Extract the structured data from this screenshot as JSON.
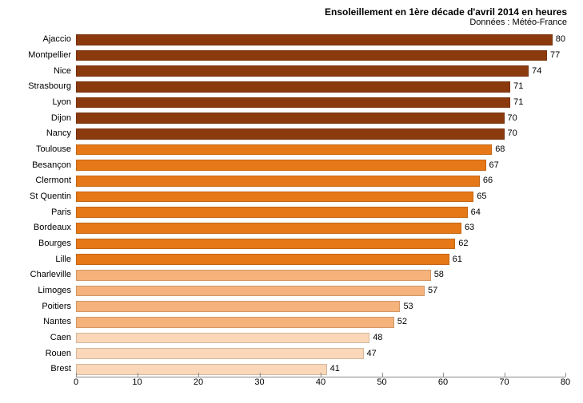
{
  "chart": {
    "type": "bar-horizontal",
    "title": "Ensoleillement en 1ère décade d'avril 2014 en heures",
    "subtitle": "Données : Météo-France",
    "title_fontsize": 12,
    "subtitle_fontsize": 11,
    "background_color": "#ffffff",
    "xlim": [
      0,
      80
    ],
    "xtick_step": 10,
    "xticks": [
      0,
      10,
      20,
      30,
      40,
      50,
      60,
      70,
      80
    ],
    "bar_border_color": "rgba(0,0,0,0.15)",
    "colors": {
      "dark": "#8b3a0e",
      "mid": "#e67817",
      "light": "#f5b27a",
      "pale": "#f9d7b8"
    },
    "rows": [
      {
        "label": "Ajaccio",
        "value": 80,
        "color": "#8b3a0e"
      },
      {
        "label": "Montpellier",
        "value": 77,
        "color": "#8b3a0e"
      },
      {
        "label": "Nice",
        "value": 74,
        "color": "#8b3a0e"
      },
      {
        "label": "Strasbourg",
        "value": 71,
        "color": "#8b3a0e"
      },
      {
        "label": "Lyon",
        "value": 71,
        "color": "#8b3a0e"
      },
      {
        "label": "Dijon",
        "value": 70,
        "color": "#8b3a0e"
      },
      {
        "label": "Nancy",
        "value": 70,
        "color": "#8b3a0e"
      },
      {
        "label": "Toulouse",
        "value": 68,
        "color": "#e67817"
      },
      {
        "label": "Besançon",
        "value": 67,
        "color": "#e67817"
      },
      {
        "label": "Clermont",
        "value": 66,
        "color": "#e67817"
      },
      {
        "label": "St Quentin",
        "value": 65,
        "color": "#e67817"
      },
      {
        "label": "Paris",
        "value": 64,
        "color": "#e67817"
      },
      {
        "label": "Bordeaux",
        "value": 63,
        "color": "#e67817"
      },
      {
        "label": "Bourges",
        "value": 62,
        "color": "#e67817"
      },
      {
        "label": "Lille",
        "value": 61,
        "color": "#e67817"
      },
      {
        "label": "Charleville",
        "value": 58,
        "color": "#f5b27a"
      },
      {
        "label": "Limoges",
        "value": 57,
        "color": "#f5b27a"
      },
      {
        "label": "Poitiers",
        "value": 53,
        "color": "#f5b27a"
      },
      {
        "label": "Nantes",
        "value": 52,
        "color": "#f5b27a"
      },
      {
        "label": "Caen",
        "value": 48,
        "color": "#f9d7b8"
      },
      {
        "label": "Rouen",
        "value": 47,
        "color": "#f9d7b8"
      },
      {
        "label": "Brest",
        "value": 41,
        "color": "#f9d7b8"
      }
    ]
  }
}
